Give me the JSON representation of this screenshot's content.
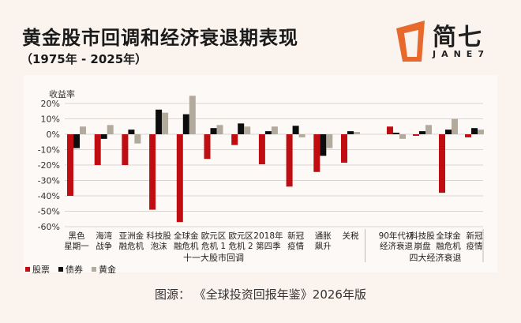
{
  "header": {
    "title": "黄金股市回调和经济衰退期表现",
    "subtitle": "（1975年 - 2025年）"
  },
  "logo": {
    "text": "简七",
    "sub": "JANE7"
  },
  "source": "图源：  《全球投资回报年鉴》2026年版",
  "colors": {
    "stock": "#c00d12",
    "bond": "#0d0d0d",
    "gold": "#b3aa9e",
    "grid": "#d9d5d2"
  },
  "chart_data": {
    "type": "bar",
    "ylabel": "收益率",
    "ylim": [
      -60,
      20
    ],
    "yticks": [
      20,
      10,
      0,
      -10,
      -20,
      -30,
      -40,
      -50,
      -60
    ],
    "ytick_labels": [
      "20%",
      "10%",
      "0%",
      "-10%",
      "-20%",
      "-30%",
      "-40%",
      "-50%",
      "-60%"
    ],
    "grid": true,
    "legend_position": "bottom-left",
    "groups": [
      {
        "label": "十一大股市回调",
        "categories": [
          [
            "黑色",
            "星期一"
          ],
          [
            "海湾",
            "战争"
          ],
          [
            "亚洲金",
            "融危机"
          ],
          [
            "科技股",
            "泡沫"
          ],
          [
            "全球金",
            "融危机"
          ],
          [
            "欧元区",
            "危机 1"
          ],
          [
            "欧元区",
            "危机 2"
          ],
          [
            "2018年",
            "第四季"
          ],
          [
            "新冠",
            "疫情"
          ],
          [
            "通胀",
            "飙升"
          ],
          [
            "关税",
            ""
          ]
        ]
      },
      {
        "label": "四大经济衰退",
        "categories": [
          [
            "90年代初",
            "经济衰退"
          ],
          [
            "科技股",
            "崩盘"
          ],
          [
            "全球金",
            "融危机"
          ],
          [
            "新冠",
            "疫情"
          ]
        ]
      }
    ],
    "series": [
      {
        "name": "股票",
        "values": [
          -40,
          -20,
          -20,
          -49,
          -57,
          -16,
          -7,
          -19.5,
          -34,
          -24.5,
          -18.5,
          5,
          -1,
          -38,
          -2
        ]
      },
      {
        "name": "债券",
        "values": [
          -9,
          -3,
          3,
          16,
          13,
          4,
          7,
          2,
          5.5,
          -14,
          2,
          1,
          2,
          3,
          4
        ]
      },
      {
        "name": "黄金",
        "values": [
          5,
          6,
          -6,
          14,
          25,
          6,
          5,
          5,
          -2,
          -9,
          1.5,
          -3,
          6,
          10,
          3
        ]
      }
    ]
  }
}
